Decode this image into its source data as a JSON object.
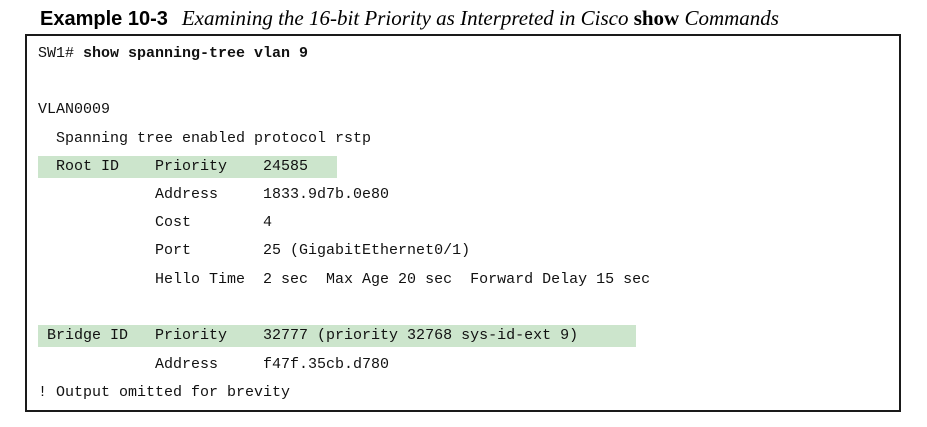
{
  "caption": {
    "label": "Example 10-3",
    "title_pre": "Examining the 16-bit Priority as Interpreted in Cisco ",
    "title_code": "show",
    "title_post": " Commands"
  },
  "output": {
    "prompt": "SW1# ",
    "command": "show spanning-tree vlan 9",
    "vlan": "VLAN0009",
    "protocol": "  Spanning tree enabled protocol rstp",
    "root_row": "  Root ID    Priority    24585",
    "root_address": "             Address     1833.9d7b.0e80",
    "root_cost": "             Cost        4",
    "root_port": "             Port        25 (GigabitEthernet0/1)",
    "root_hello": "             Hello Time  2 sec  Max Age 20 sec  Forward Delay 15 sec",
    "bridge_row": " Bridge ID   Priority    32777 (priority 32768 sys-id-ext 9)",
    "bridge_address": "             Address     f47f.35cb.d780",
    "omitted": "! Output omitted for brevity"
  }
}
